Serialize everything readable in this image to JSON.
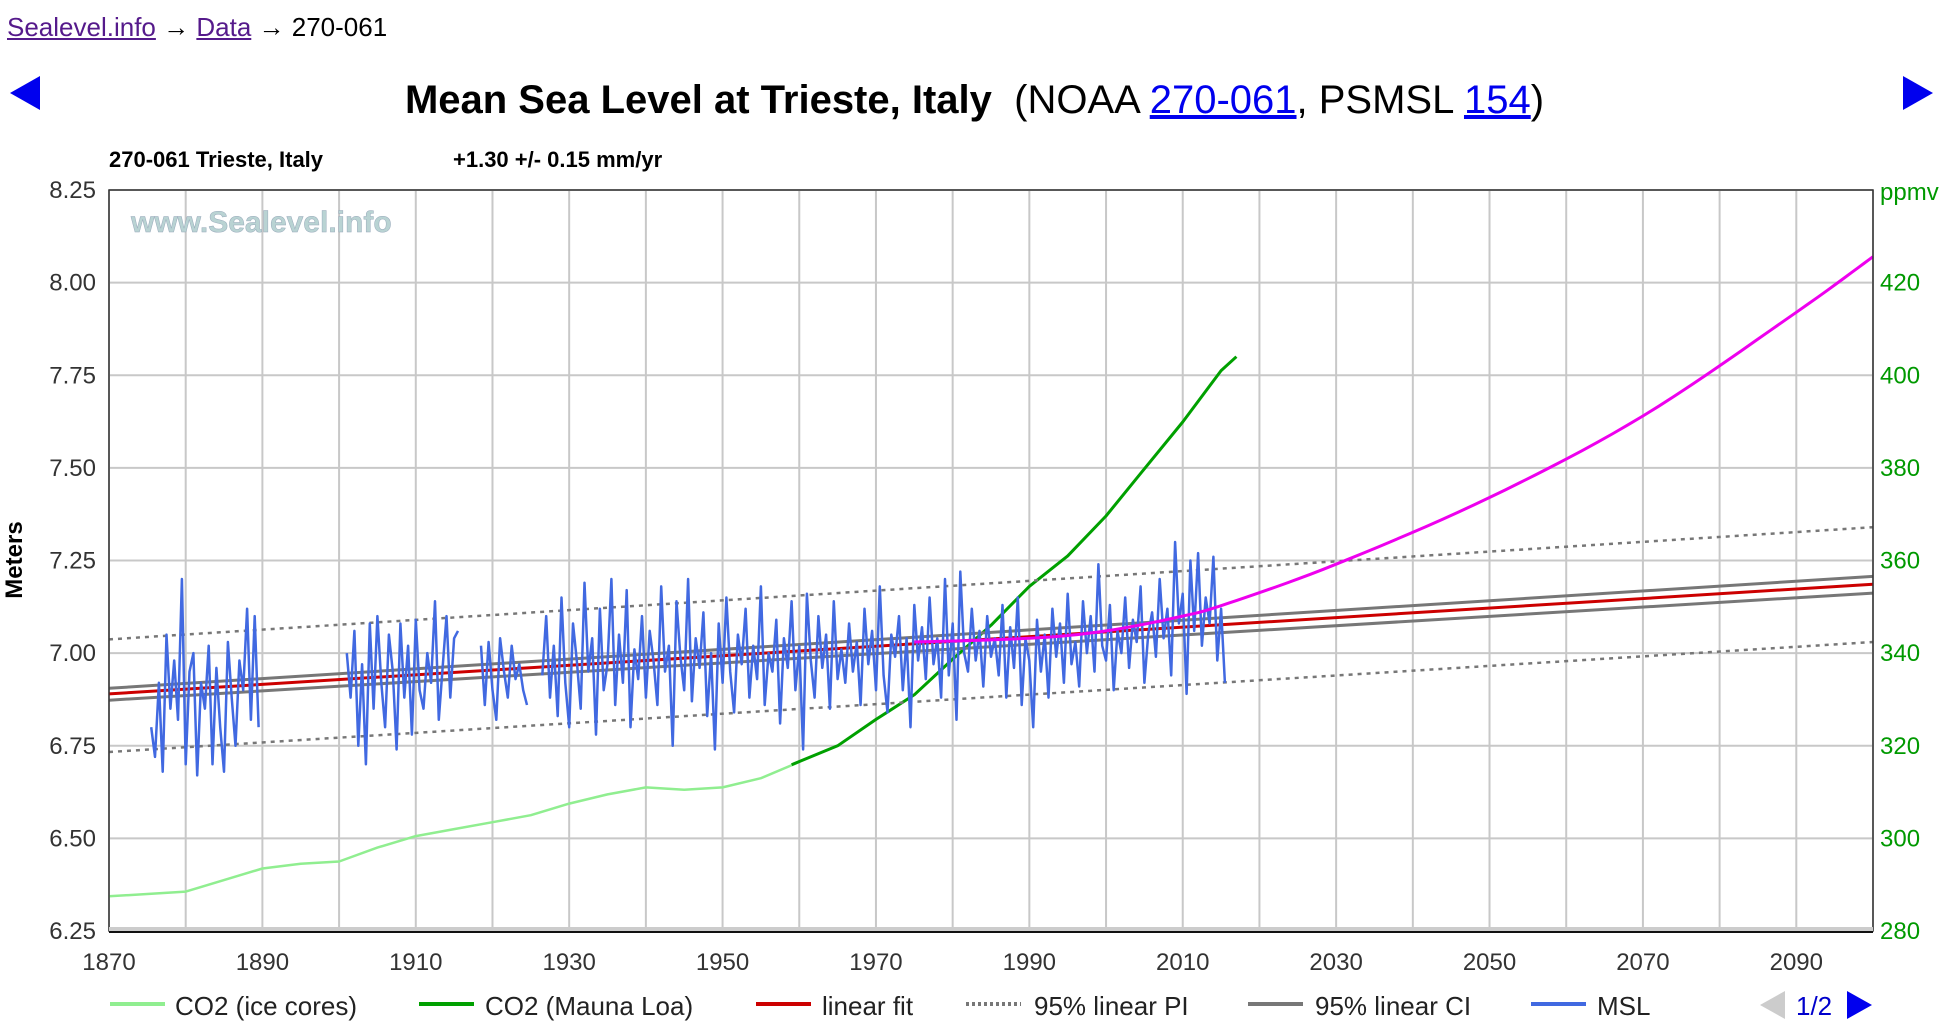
{
  "breadcrumb": {
    "items": [
      "Sealevel.info",
      "Data"
    ],
    "current": "270-061",
    "sep": "→"
  },
  "title": {
    "main": "Mean Sea Level at Trieste, Italy",
    "open": "(NOAA ",
    "noaa_id": "270-061",
    "mid": ", PSMSL ",
    "psmsl_id": "154",
    "close": ")"
  },
  "nav": {
    "prev": "previous-station",
    "next": "next-station"
  },
  "chart_data": {
    "type": "line",
    "subtitle_station": "270-061 Trieste, Italy",
    "subtitle_rate": "+1.30 +/- 0.15 mm/yr",
    "watermark": "www.Sealevel.info",
    "ylabel": "Meters",
    "y2label": "ppmv",
    "xlim": [
      1870,
      2100
    ],
    "ylim": [
      6.25,
      8.25
    ],
    "y2lim": [
      280,
      440
    ],
    "xticks": [
      "1870",
      "1890",
      "1910",
      "1930",
      "1950",
      "1970",
      "1990",
      "2010",
      "2030",
      "2050",
      "2070",
      "2090"
    ],
    "yticks": [
      "6.25",
      "6.50",
      "6.75",
      "7.00",
      "7.25",
      "7.50",
      "7.75",
      "8.00",
      "8.25"
    ],
    "y2ticks": [
      "280",
      "300",
      "320",
      "340",
      "360",
      "380",
      "400",
      "420"
    ],
    "grid": true,
    "colors": {
      "ice": "#90ee90",
      "mauna": "#00a000",
      "fit": "#cc0000",
      "pi": "#777777",
      "ci": "#777777",
      "msl": "#4169e1",
      "accel": "#ee00ee",
      "y2": "#009900"
    },
    "series": {
      "co2_ice": {
        "name": "CO2 (ice cores)",
        "points": [
          [
            1870,
            287.5
          ],
          [
            1875,
            288
          ],
          [
            1880,
            288.5
          ],
          [
            1885,
            291
          ],
          [
            1890,
            293.5
          ],
          [
            1895,
            294.5
          ],
          [
            1900,
            295
          ],
          [
            1905,
            298
          ],
          [
            1910,
            300.5
          ],
          [
            1915,
            302
          ],
          [
            1920,
            303.5
          ],
          [
            1925,
            305
          ],
          [
            1930,
            307.5
          ],
          [
            1935,
            309.5
          ],
          [
            1940,
            311
          ],
          [
            1945,
            310.5
          ],
          [
            1950,
            311
          ],
          [
            1955,
            313
          ],
          [
            1960,
            316.5
          ]
        ]
      },
      "co2_mauna_loa": {
        "name": "CO2 (Mauna Loa)",
        "points": [
          [
            1959,
            315.9
          ],
          [
            1965,
            320
          ],
          [
            1970,
            325.7
          ],
          [
            1975,
            331
          ],
          [
            1980,
            338.7
          ],
          [
            1985,
            346
          ],
          [
            1990,
            354.4
          ],
          [
            1995,
            361
          ],
          [
            2000,
            369.6
          ],
          [
            2005,
            379.8
          ],
          [
            2010,
            389.9
          ],
          [
            2015,
            401
          ],
          [
            2017,
            404
          ]
        ]
      },
      "linear_fit": {
        "name": "linear fit",
        "points": [
          [
            1870,
            6.89
          ],
          [
            2100,
            7.186
          ]
        ]
      },
      "pi_upper": {
        "name": "95% linear PI",
        "points": [
          [
            1870,
            7.037
          ],
          [
            2100,
            7.34
          ]
        ]
      },
      "pi_lower": {
        "points": [
          [
            1870,
            6.733
          ],
          [
            2100,
            7.03
          ]
        ]
      },
      "ci_upper": {
        "name": "95% linear CI",
        "points": [
          [
            1870,
            6.905
          ],
          [
            2100,
            7.207
          ]
        ]
      },
      "ci_lower": {
        "points": [
          [
            1870,
            6.873
          ],
          [
            2100,
            7.162
          ]
        ]
      },
      "acceleration": {
        "points": [
          [
            1975,
            7.03
          ],
          [
            1990,
            7.04
          ],
          [
            2000,
            7.06
          ],
          [
            2010,
            7.1
          ],
          [
            2016,
            7.135
          ],
          [
            2030,
            7.24
          ],
          [
            2050,
            7.42
          ],
          [
            2070,
            7.64
          ],
          [
            2090,
            7.92
          ],
          [
            2100,
            8.07
          ]
        ]
      },
      "msl": {
        "name": "MSL",
        "step": 0.5,
        "segments": [
          {
            "start": 1875.5,
            "values": [
              6.8,
              6.72,
              6.92,
              6.68,
              7.05,
              6.85,
              6.98,
              6.82,
              7.2,
              6.7,
              6.95,
              7.0,
              6.67,
              6.92,
              6.85,
              7.02,
              6.7,
              6.96,
              6.8,
              6.68,
              7.03,
              6.88,
              6.75,
              6.98,
              6.9,
              7.12,
              6.82,
              7.1,
              6.8
            ]
          },
          {
            "start": 1901,
            "values": [
              7.0,
              6.88,
              7.06,
              6.75,
              6.97,
              6.7,
              7.08,
              6.85,
              7.1,
              6.92,
              6.8,
              7.05,
              6.95,
              6.74,
              7.08,
              6.88,
              7.02,
              6.78,
              7.09,
              6.9,
              6.85,
              7.0,
              6.92,
              7.14,
              6.82,
              6.96,
              7.1,
              6.88,
              7.04,
              7.06
            ]
          },
          {
            "start": 1918.5,
            "values": [
              7.02,
              6.86,
              7.03,
              6.9,
              6.82,
              7.04,
              6.95,
              6.88,
              7.02,
              6.93,
              6.97,
              6.9,
              6.86
            ]
          },
          {
            "start": 1926.5,
            "values": [
              6.94,
              7.1,
              6.88,
              7.02,
              6.83,
              7.15,
              6.92,
              6.8,
              7.08,
              6.98,
              6.85,
              7.19,
              6.95,
              7.04,
              6.78,
              7.12,
              6.9,
              6.97,
              7.2,
              6.86,
              7.05,
              6.92,
              7.17,
              6.8,
              7.01,
              6.93,
              7.1,
              6.88,
              7.06,
              6.98,
              6.86,
              7.18,
              6.95,
              7.02,
              6.75,
              7.14,
              6.99,
              6.9,
              7.2,
              6.87,
              7.04,
              6.96,
              7.11,
              6.83,
              7.0,
              6.74,
              7.08,
              6.92,
              7.15,
              6.95,
              6.84,
              7.05,
              6.97,
              7.12,
              6.88,
              7.02,
              6.93,
              7.18,
              6.86,
              7.0,
              6.95,
              7.09,
              6.81,
              7.04,
              6.96,
              7.14,
              6.9,
              7.02,
              6.74,
              7.16,
              6.98,
              6.88,
              7.1,
              6.96,
              7.05,
              6.85,
              7.14,
              6.93,
              7.01,
              6.92,
              7.08,
              6.95,
              7.03,
              6.86,
              7.12,
              6.97,
              7.06,
              6.9,
              7.18,
              6.94,
              6.84,
              7.05,
              6.99,
              7.1,
              6.9,
              7.04,
              6.8,
              7.13,
              6.98,
              7.07,
              6.93,
              7.15,
              6.97,
              7.04,
              6.88,
              7.2,
              6.94,
              7.08,
              6.82,
              7.22,
              7.0,
              6.95,
              7.12,
              6.98,
              7.06,
              6.91,
              7.1,
              6.99,
              7.04,
              6.94,
              7.13,
              6.88,
              7.07,
              6.96,
              7.15,
              6.86,
              7.04,
              6.98,
              6.8,
              7.09,
              6.95,
              7.05,
              6.88,
              7.12,
              6.99,
              7.08,
              6.92,
              7.16,
              6.97,
              7.03,
              6.91,
              7.14,
              7.0,
              7.1,
              6.95,
              7.24,
              7.02,
              6.98,
              7.13,
              6.9,
              7.06,
              7.0,
              7.15,
              6.96,
              7.09,
              7.03,
              7.18,
              6.92,
              7.05,
              7.11,
              6.99,
              7.2,
              7.04,
              7.12,
              6.94,
              7.3,
              7.08,
              7.16,
              6.89,
              7.25,
              7.06,
              7.27,
              7.02,
              7.15,
              7.08,
              7.26,
              6.98,
              7.12,
              6.92
            ]
          }
        ]
      }
    },
    "legend": [
      "CO2 (ice cores)",
      "CO2 (Mauna Loa)",
      "linear fit",
      "95% linear PI",
      "95% linear CI",
      "MSL"
    ],
    "legend_page": "1/2"
  }
}
